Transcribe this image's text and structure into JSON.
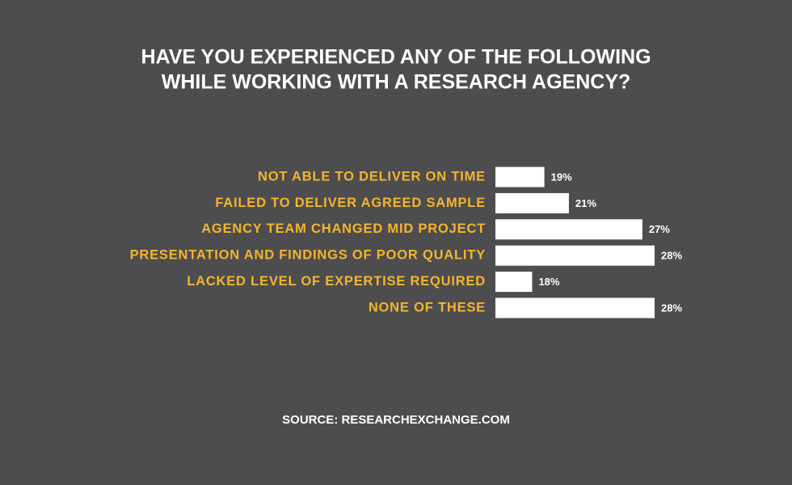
{
  "chart_data": {
    "type": "hbar",
    "title": [
      "HAVE YOU EXPERIENCED ANY OF THE FOLLOWING",
      "WHILE WORKING WITH A RESEARCH AGENCY?"
    ],
    "categories": [
      "NOT ABLE TO DELIVER ON TIME",
      "FAILED TO DELIVER AGREED SAMPLE",
      "AGENCY TEAM CHANGED MID PROJECT",
      "PRESENTATION AND FINDINGS OF POOR QUALITY",
      "LACKED LEVEL OF EXPERTISE REQUIRED",
      "NONE OF THESE"
    ],
    "values": [
      19,
      21,
      27,
      28,
      18,
      28
    ],
    "value_labels": [
      "19%",
      "21%",
      "27%",
      "28%",
      "18%",
      "28%"
    ],
    "color": "#ffffff",
    "xlim": [
      15,
      28
    ],
    "source": "SOURCE: RESEARCHEXCHANGE.COM"
  }
}
